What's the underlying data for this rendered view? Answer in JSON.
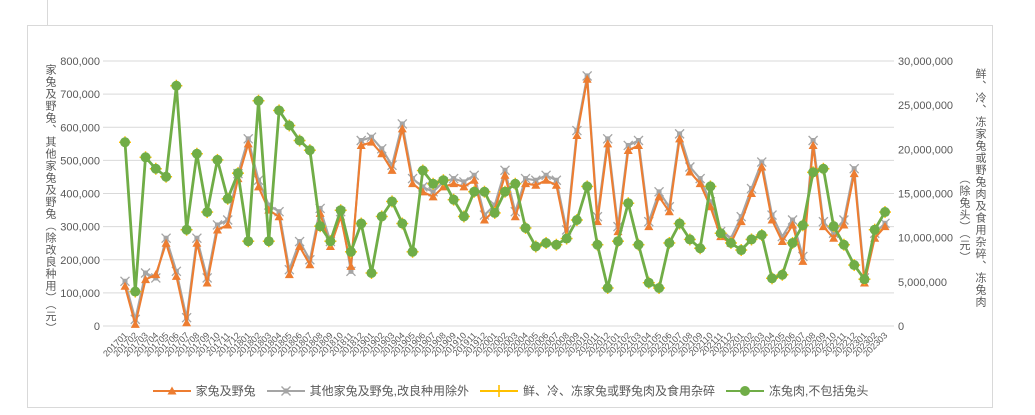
{
  "chart": {
    "left_axis_title": "家兔及野兔、其他家兔及野兔（除改良种用）（元）",
    "right_axis_title_main": "鲜、冷、冻家兔或野兔肉及食用杂碎、冻兔肉",
    "right_axis_title_sub": "（除兔头）（元）"
  },
  "chart_data": {
    "type": "line",
    "title": "",
    "xlabel": "",
    "ylabel_left": "家兔及野兔、其他家兔及野兔（除改良种用）（元）",
    "ylabel_right": "鲜、冷、冻家兔或野兔肉及食用杂碎、冻兔肉（除兔头）（元）",
    "grid": true,
    "legend_position": "bottom",
    "left_axis": {
      "min": 0,
      "max": 800000,
      "step": 100000,
      "tick_labels": [
        "0",
        "100,000",
        "200,000",
        "300,000",
        "400,000",
        "500,000",
        "600,000",
        "700,000",
        "800,000"
      ]
    },
    "right_axis": {
      "min": 0,
      "max": 30000000,
      "step": 5000000,
      "tick_labels": [
        "0",
        "5,000,000",
        "10,000,000",
        "15,000,000",
        "20,000,000",
        "25,000,000",
        "30,000,000"
      ]
    },
    "x": [
      "201701",
      "201702",
      "201703",
      "201704",
      "201705",
      "201706",
      "201707",
      "201708",
      "201709",
      "201710",
      "201711",
      "201712",
      "201801",
      "201802",
      "201803",
      "201804",
      "201805",
      "201806",
      "201807",
      "201808",
      "201809",
      "201810",
      "201811",
      "201812",
      "201901",
      "201902",
      "201903",
      "201904",
      "201905",
      "201906",
      "201907",
      "201908",
      "201909",
      "201910",
      "201911",
      "201912",
      "202001",
      "202002",
      "202003",
      "202004",
      "202005",
      "202006",
      "202007",
      "202008",
      "202009",
      "202010",
      "202011",
      "202012",
      "202101",
      "202102",
      "202103",
      "202104",
      "202105",
      "202106",
      "202107",
      "202108",
      "202109",
      "202110",
      "202111",
      "202112",
      "202201",
      "202202",
      "202203",
      "202204",
      "202205",
      "202206",
      "202207",
      "202208",
      "202209",
      "202210",
      "202211",
      "202212",
      "202301",
      "202302",
      "202303"
    ],
    "series": [
      {
        "name": "家兔及野兔",
        "color": "#ED7D31",
        "marker": "triangle",
        "axis": "left",
        "values": [
          120000,
          5000,
          140000,
          155000,
          250000,
          150000,
          10000,
          250000,
          130000,
          290000,
          305000,
          445000,
          550000,
          420000,
          350000,
          330000,
          155000,
          240000,
          185000,
          340000,
          240000,
          330000,
          180000,
          545000,
          555000,
          520000,
          470000,
          595000,
          430000,
          405000,
          390000,
          420000,
          430000,
          420000,
          440000,
          320000,
          350000,
          455000,
          330000,
          430000,
          425000,
          440000,
          425000,
          275000,
          575000,
          745000,
          315000,
          550000,
          285000,
          530000,
          545000,
          300000,
          390000,
          345000,
          565000,
          465000,
          430000,
          360000,
          270000,
          250000,
          315000,
          400000,
          480000,
          320000,
          255000,
          305000,
          195000,
          545000,
          300000,
          265000,
          305000,
          460000,
          130000,
          265000,
          300000
        ]
      },
      {
        "name": "其他家兔及野兔,改良种用除外",
        "color": "#A5A5A5",
        "marker": "x-square",
        "axis": "left",
        "values": [
          135000,
          20000,
          160000,
          145000,
          265000,
          165000,
          25000,
          265000,
          145000,
          305000,
          320000,
          460000,
          565000,
          440000,
          365000,
          345000,
          170000,
          255000,
          200000,
          355000,
          255000,
          345000,
          165000,
          560000,
          570000,
          535000,
          485000,
          610000,
          445000,
          420000,
          405000,
          435000,
          445000,
          435000,
          455000,
          335000,
          365000,
          470000,
          345000,
          445000,
          440000,
          455000,
          440000,
          290000,
          590000,
          755000,
          330000,
          565000,
          300000,
          545000,
          560000,
          315000,
          405000,
          360000,
          580000,
          480000,
          445000,
          375000,
          285000,
          265000,
          330000,
          415000,
          495000,
          335000,
          270000,
          320000,
          210000,
          560000,
          315000,
          280000,
          320000,
          475000,
          145000,
          280000,
          310000
        ]
      },
      {
        "name": "鲜、冷、冻家兔或野兔肉及食用杂碎",
        "color": "#FFC000",
        "marker": "plus",
        "axis": "right",
        "values": [
          20800000,
          3900000,
          19100000,
          17800000,
          16900000,
          27200000,
          10900000,
          19500000,
          12900000,
          18800000,
          14400000,
          17300000,
          9600000,
          25500000,
          9600000,
          24400000,
          22700000,
          21000000,
          19900000,
          11300000,
          9600000,
          13100000,
          8400000,
          11600000,
          6000000,
          12400000,
          14100000,
          11600000,
          8400000,
          17600000,
          16100000,
          16500000,
          14300000,
          12400000,
          15200000,
          15200000,
          12800000,
          15200000,
          16100000,
          11100000,
          9000000,
          9400000,
          9200000,
          9900000,
          12000000,
          15800000,
          9200000,
          4300000,
          9600000,
          13900000,
          9200000,
          4900000,
          4300000,
          9400000,
          11600000,
          9800000,
          8800000,
          15800000,
          10500000,
          9400000,
          8600000,
          9800000,
          10300000,
          5400000,
          5800000,
          9400000,
          11400000,
          17400000,
          17800000,
          11300000,
          9200000,
          6900000,
          5300000,
          10900000,
          12900000
        ]
      },
      {
        "name": "冻兔肉,不包括兔头",
        "color": "#70AD47",
        "marker": "circle",
        "axis": "right",
        "values": [
          20800000,
          3900000,
          19100000,
          17800000,
          16900000,
          27200000,
          10900000,
          19500000,
          12900000,
          18800000,
          14400000,
          17300000,
          9600000,
          25500000,
          9600000,
          24400000,
          22700000,
          21000000,
          19900000,
          11300000,
          9600000,
          13100000,
          8400000,
          11600000,
          6000000,
          12400000,
          14100000,
          11600000,
          8400000,
          17600000,
          16100000,
          16500000,
          14300000,
          12400000,
          15200000,
          15200000,
          12800000,
          15200000,
          16100000,
          11100000,
          9000000,
          9400000,
          9200000,
          9900000,
          12000000,
          15800000,
          9200000,
          4300000,
          9600000,
          13900000,
          9200000,
          4900000,
          4300000,
          9400000,
          11600000,
          9800000,
          8800000,
          15800000,
          10500000,
          9400000,
          8600000,
          9800000,
          10300000,
          5400000,
          5800000,
          9400000,
          11400000,
          17400000,
          17800000,
          11300000,
          9200000,
          6900000,
          5300000,
          10900000,
          12900000
        ]
      }
    ],
    "colors": {
      "grid": "#D9D9D9",
      "axis_text": "#595959",
      "frame_border": "#D9D9D9"
    }
  }
}
